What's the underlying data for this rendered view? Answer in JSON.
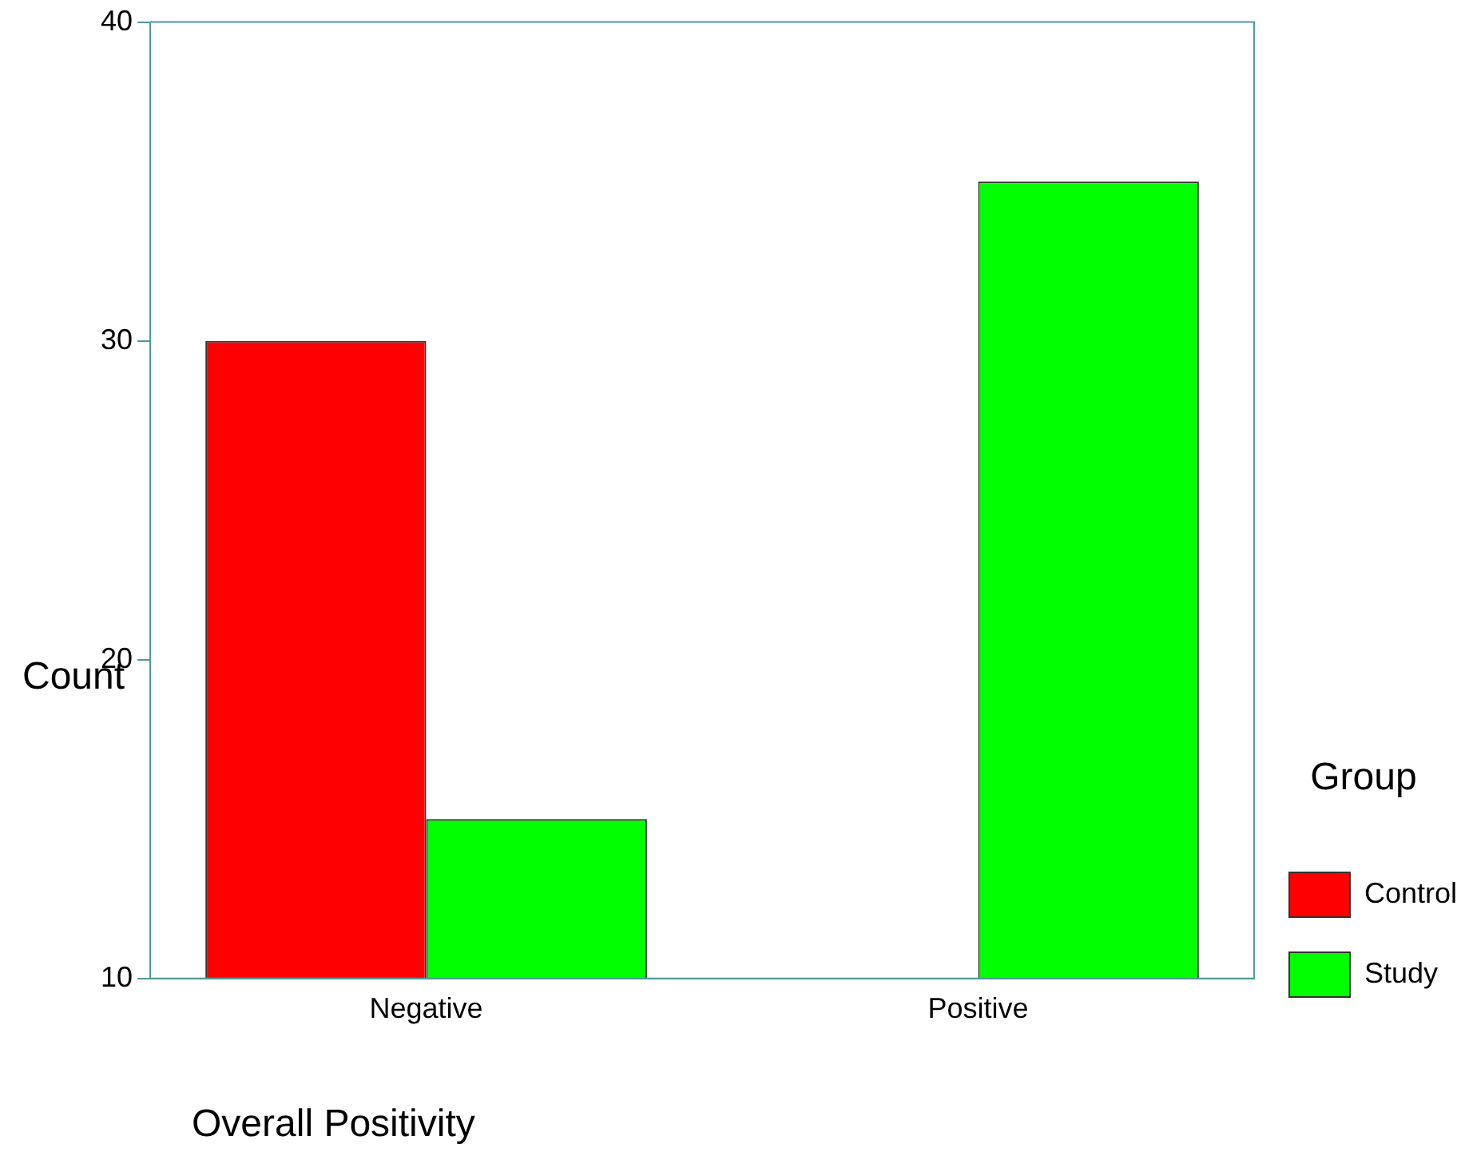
{
  "chart_data": {
    "type": "bar",
    "xlabel": "Overall Positivity",
    "ylabel": "Count",
    "legend_title": "Group",
    "categories": [
      "Negative",
      "Positive"
    ],
    "series": [
      {
        "name": "Control",
        "color": "#ff0000",
        "values": [
          30,
          null
        ]
      },
      {
        "name": "Study",
        "color": "#00ff00",
        "values": [
          15,
          35
        ]
      }
    ],
    "ylim": [
      10,
      40
    ],
    "yticks": [
      10,
      20,
      30,
      40
    ],
    "grid": false,
    "legend": "right"
  }
}
